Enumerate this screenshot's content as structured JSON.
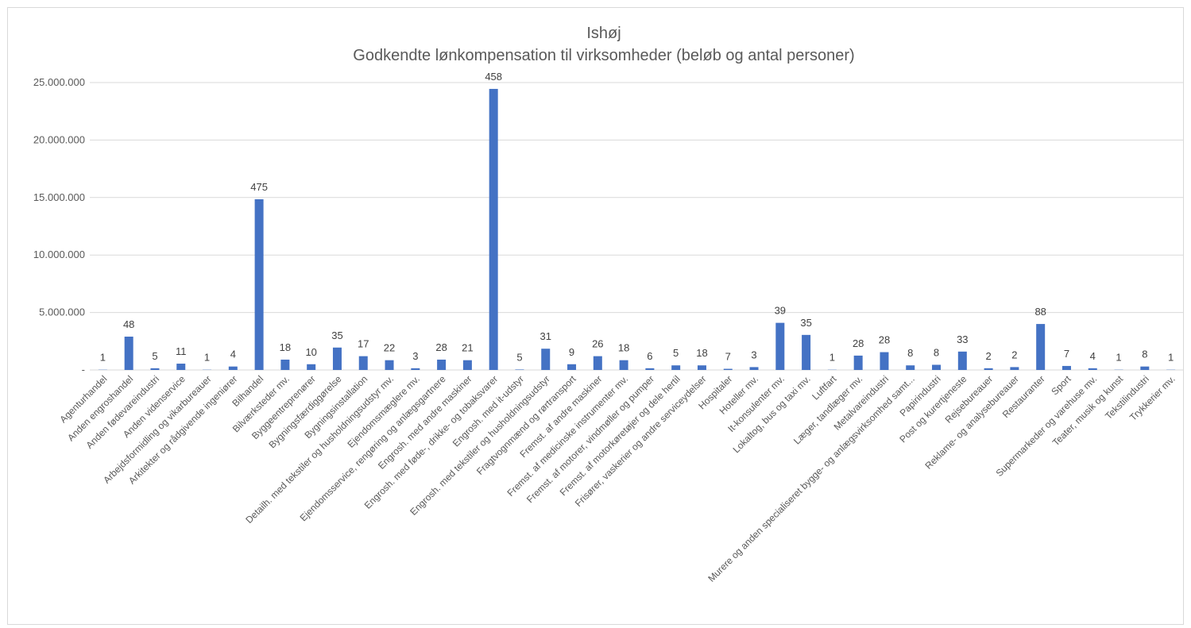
{
  "chart_data": {
    "type": "bar",
    "title": "Ishøj",
    "subtitle": "Godkendte lønkompensation til virksomheder (beløb og antal personer)",
    "xlabel": "",
    "ylabel": "",
    "ylim": [
      0,
      25000000
    ],
    "yticks": [
      0,
      5000000,
      10000000,
      15000000,
      20000000,
      25000000
    ],
    "ytick_labels": [
      "-",
      "5.000.000",
      "10.000.000",
      "15.000.000",
      "20.000.000",
      "25.000.000"
    ],
    "grid": true,
    "legend": "none",
    "bar_color": "#4472c4",
    "categories": [
      "Agenturhandel",
      "Anden engroshandel",
      "Anden fødevareindustri",
      "Anden videnservice",
      "Arbejdsformidling og vikarbureauer",
      "Arkitekter og rådgivende ingeniører",
      "Bilhandel",
      "Bilværksteder mv.",
      "Byggeentreprenører",
      "Bygningsfærdiggørelse",
      "Bygningsinstallation",
      "Detailh. med tekstiler og husholdningsudstyr mv.",
      "Ejendomsmæglere mv.",
      "Ejendomsservice, rengøring og anlægsgartnere",
      "Engrosh. med andre maskiner",
      "Engrosh. med føde-, drikke- og tobaksvarer",
      "Engrosh. med it-udstyr",
      "Engrosh. med tekstiler og husholdningsudstyr",
      "Fragtvognmænd og rørtransport",
      "Fremst. af andre maskiner",
      "Fremst. af medicinske instrumenter mv.",
      "Fremst. af motorer, vindmøller og pumper",
      "Fremst. af motorkøretøjer og dele hertil",
      "Frisører, vaskerier og andre serviceydelser",
      "Hospitaler",
      "Hoteller mv.",
      "It-konsulenter mv.",
      "Lokaltog, bus og taxi mv.",
      "Luftfart",
      "Læger, tandlæger mv.",
      "Metalvareindustri",
      "Murere og anden specialiseret bygge- og anlægsvirksomhed samt...",
      "Papirindustri",
      "Post og kurertjeneste",
      "Rejsebureauer",
      "Reklame- og analysebureauer",
      "Restauranter",
      "Sport",
      "Supermarkeder og varehuse mv.",
      "Teater, musik og kunst",
      "Tekstilindustri",
      "Trykkerier mv."
    ],
    "values": [
      20000,
      2900000,
      150000,
      550000,
      20000,
      300000,
      14850000,
      900000,
      500000,
      1950000,
      1200000,
      850000,
      150000,
      900000,
      850000,
      24450000,
      40000,
      1850000,
      500000,
      1200000,
      850000,
      150000,
      400000,
      400000,
      100000,
      250000,
      4100000,
      3050000,
      20000,
      1250000,
      1550000,
      400000,
      450000,
      1600000,
      150000,
      250000,
      4000000,
      350000,
      150000,
      20000,
      300000,
      20000
    ],
    "data_labels": [
      "1",
      "48",
      "5",
      "11",
      "1",
      "4",
      "475",
      "18",
      "10",
      "35",
      "17",
      "22",
      "3",
      "28",
      "21",
      "458",
      "5",
      "31",
      "9",
      "26",
      "18",
      "6",
      "5",
      "18",
      "7",
      "3",
      "39",
      "35",
      "1",
      "28",
      "28",
      "8",
      "8",
      "33",
      "2",
      "2",
      "88",
      "7",
      "4",
      "1",
      "8",
      "1"
    ]
  }
}
